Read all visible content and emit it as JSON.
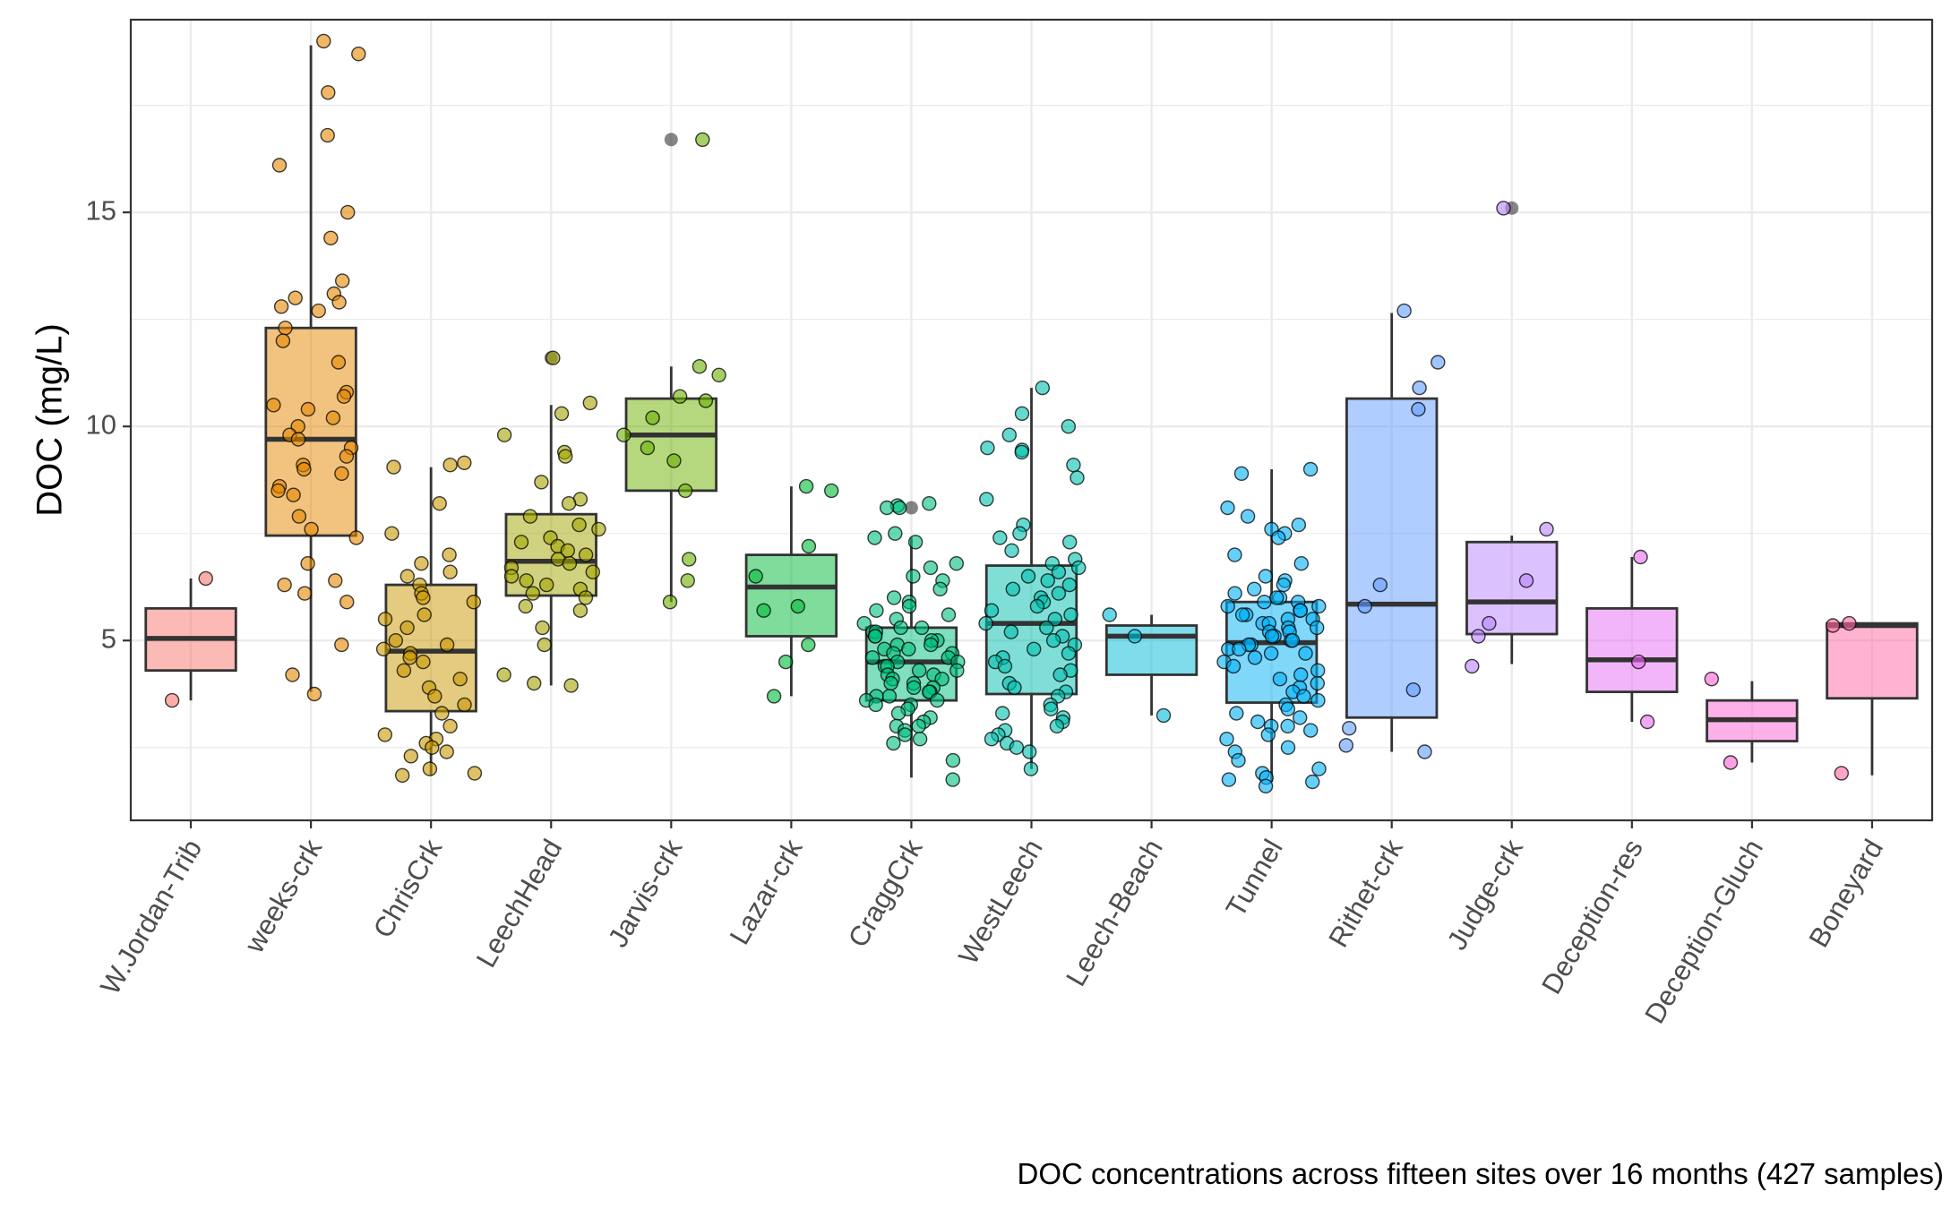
{
  "chart_data": {
    "type": "box",
    "title": "",
    "xlabel": "",
    "ylabel": "DOC (mg/L)",
    "caption": "DOC concentrations across fifteen sites over 16 months (427 samples)",
    "ylim": [
      0.8,
      19.5
    ],
    "yticks": [
      5,
      10,
      15
    ],
    "grid": true,
    "legend": "none",
    "point_alpha": 0.6,
    "categories": [
      "W.Jordan-Trib",
      "weeks-crk",
      "ChrisCrk",
      "LeechHead",
      "Jarvis-crk",
      "Lazar-crk",
      "CraggCrk",
      "WestLeech",
      "Leech-Beach",
      "Tunnel",
      "Rithet-crk",
      "Judge-crk",
      "Deception-res",
      "Deception-Gluch",
      "Boneyard"
    ],
    "colors": [
      "#F8766D",
      "#E58700",
      "#C99800",
      "#A3A500",
      "#6BB100",
      "#00BA38",
      "#00BF7D",
      "#00C0AF",
      "#00BCD8",
      "#00B0F6",
      "#619CFF",
      "#B983FF",
      "#E76BF3",
      "#FD61D1",
      "#FF67A4"
    ],
    "series": [
      {
        "name": "W.Jordan-Trib",
        "stats": {
          "min": 3.6,
          "q1": 4.3,
          "median": 5.05,
          "q3": 5.75,
          "max": 6.45
        },
        "outliers": [],
        "points": [
          6.45,
          3.6
        ]
      },
      {
        "name": "weeks-crk",
        "stats": {
          "min": 3.8,
          "q1": 7.45,
          "median": 9.7,
          "q3": 12.3,
          "max": 18.9
        },
        "outliers": [],
        "points": [
          19.0,
          18.7,
          17.8,
          16.8,
          16.1,
          15.0,
          14.4,
          13.4,
          13.1,
          13.0,
          12.9,
          12.8,
          12.7,
          12.3,
          12.0,
          11.5,
          10.8,
          10.7,
          10.5,
          10.4,
          10.2,
          10.0,
          9.8,
          9.7,
          9.5,
          9.3,
          9.1,
          9.0,
          8.9,
          8.6,
          8.5,
          8.4,
          7.9,
          7.6,
          7.4,
          6.8,
          6.4,
          6.3,
          6.1,
          5.9,
          4.9,
          4.2,
          3.75
        ]
      },
      {
        "name": "ChrisCrk",
        "stats": {
          "min": 1.85,
          "q1": 3.35,
          "median": 4.75,
          "q3": 6.3,
          "max": 9.05
        },
        "outliers": [],
        "points": [
          9.15,
          9.1,
          9.05,
          8.2,
          7.5,
          7.0,
          6.8,
          6.6,
          6.5,
          6.3,
          6.1,
          6.0,
          5.9,
          5.6,
          5.5,
          5.3,
          5.0,
          4.9,
          4.8,
          4.7,
          4.6,
          4.5,
          4.3,
          4.1,
          3.9,
          3.7,
          3.5,
          3.3,
          3.0,
          2.8,
          2.7,
          2.6,
          2.5,
          2.4,
          2.3,
          2.0,
          1.9,
          1.85
        ]
      },
      {
        "name": "LeechHead",
        "stats": {
          "min": 3.95,
          "q1": 6.05,
          "median": 6.85,
          "q3": 7.95,
          "max": 10.5
        },
        "outliers": [
          11.6
        ],
        "points": [
          11.6,
          10.55,
          10.3,
          9.8,
          9.4,
          9.3,
          8.7,
          8.3,
          8.2,
          7.9,
          7.7,
          7.6,
          7.4,
          7.3,
          7.2,
          7.1,
          7.0,
          6.9,
          6.8,
          6.7,
          6.6,
          6.5,
          6.4,
          6.3,
          6.2,
          6.1,
          6.0,
          5.8,
          5.7,
          5.3,
          4.9,
          4.2,
          4.0,
          3.95
        ]
      },
      {
        "name": "Jarvis-crk",
        "stats": {
          "min": 5.9,
          "q1": 8.5,
          "median": 9.8,
          "q3": 10.65,
          "max": 11.4
        },
        "outliers": [
          16.7
        ],
        "points": [
          16.7,
          11.4,
          11.2,
          10.7,
          10.6,
          10.2,
          9.8,
          9.5,
          9.2,
          8.5,
          6.9,
          6.4,
          5.9
        ]
      },
      {
        "name": "Lazar-crk",
        "stats": {
          "min": 3.7,
          "q1": 5.1,
          "median": 6.25,
          "q3": 7.0,
          "max": 8.6
        },
        "outliers": [],
        "points": [
          8.6,
          8.5,
          7.2,
          6.5,
          5.8,
          5.7,
          4.9,
          4.5,
          3.7
        ]
      },
      {
        "name": "CraggCrk",
        "stats": {
          "min": 1.8,
          "q1": 3.6,
          "median": 4.5,
          "q3": 5.3,
          "max": 7.4
        },
        "outliers": [
          8.1
        ],
        "points": [
          8.2,
          8.15,
          8.1,
          8.1,
          7.5,
          7.4,
          7.3,
          6.8,
          6.7,
          6.5,
          6.4,
          6.2,
          6.0,
          5.9,
          5.8,
          5.7,
          5.6,
          5.5,
          5.4,
          5.3,
          5.3,
          5.2,
          5.2,
          5.1,
          5.1,
          5.0,
          5.0,
          4.9,
          4.9,
          4.8,
          4.8,
          4.7,
          4.7,
          4.6,
          4.6,
          4.5,
          4.5,
          4.4,
          4.4,
          4.3,
          4.3,
          4.2,
          4.2,
          4.1,
          4.1,
          4.0,
          4.0,
          3.9,
          3.9,
          3.8,
          3.8,
          3.7,
          3.7,
          3.6,
          3.6,
          3.5,
          3.5,
          3.4,
          3.3,
          3.2,
          3.1,
          3.0,
          3.0,
          2.9,
          2.8,
          2.7,
          2.6,
          2.2,
          1.75
        ]
      },
      {
        "name": "WestLeech",
        "stats": {
          "min": 2.0,
          "q1": 3.75,
          "median": 5.4,
          "q3": 6.75,
          "max": 10.9
        },
        "outliers": [],
        "points": [
          10.9,
          10.3,
          10.0,
          9.8,
          9.5,
          9.45,
          9.4,
          9.1,
          8.8,
          8.3,
          7.7,
          7.5,
          7.4,
          7.3,
          7.1,
          6.9,
          6.8,
          6.7,
          6.6,
          6.5,
          6.4,
          6.3,
          6.2,
          6.1,
          6.0,
          5.9,
          5.8,
          5.7,
          5.6,
          5.5,
          5.4,
          5.3,
          5.2,
          5.1,
          5.0,
          4.9,
          4.8,
          4.7,
          4.6,
          4.5,
          4.4,
          4.3,
          4.2,
          4.0,
          3.9,
          3.8,
          3.7,
          3.5,
          3.4,
          3.3,
          3.2,
          3.1,
          3.0,
          2.9,
          2.8,
          2.7,
          2.6,
          2.5,
          2.4,
          2.0
        ]
      },
      {
        "name": "Leech-Beach",
        "stats": {
          "min": 3.25,
          "q1": 4.2,
          "median": 5.1,
          "q3": 5.35,
          "max": 5.6
        },
        "outliers": [],
        "points": [
          5.6,
          5.1,
          3.25
        ]
      },
      {
        "name": "Tunnel",
        "stats": {
          "min": 1.7,
          "q1": 3.55,
          "median": 4.95,
          "q3": 5.9,
          "max": 9.0
        },
        "outliers": [],
        "points": [
          9.0,
          8.9,
          8.1,
          7.9,
          7.7,
          7.6,
          7.5,
          7.4,
          7.0,
          6.8,
          6.5,
          6.4,
          6.3,
          6.2,
          6.1,
          6.0,
          6.0,
          5.9,
          5.9,
          5.8,
          5.8,
          5.7,
          5.7,
          5.6,
          5.6,
          5.5,
          5.5,
          5.4,
          5.4,
          5.3,
          5.3,
          5.2,
          5.2,
          5.1,
          5.1,
          5.0,
          5.0,
          4.9,
          4.9,
          4.8,
          4.8,
          4.7,
          4.7,
          4.6,
          4.5,
          4.4,
          4.3,
          4.2,
          4.1,
          4.0,
          3.9,
          3.8,
          3.7,
          3.6,
          3.5,
          3.4,
          3.3,
          3.2,
          3.1,
          3.0,
          3.0,
          2.9,
          2.8,
          2.7,
          2.5,
          2.4,
          2.2,
          2.0,
          1.9,
          1.8,
          1.75,
          1.7,
          1.6
        ]
      },
      {
        "name": "Rithet-crk",
        "stats": {
          "min": 2.4,
          "q1": 3.2,
          "median": 5.85,
          "q3": 10.65,
          "max": 12.65
        },
        "outliers": [],
        "points": [
          12.7,
          11.5,
          10.9,
          10.4,
          6.3,
          5.8,
          3.85,
          2.95,
          2.55,
          2.4
        ]
      },
      {
        "name": "Judge-crk",
        "stats": {
          "min": 4.45,
          "q1": 5.15,
          "median": 5.9,
          "q3": 7.3,
          "max": 7.45
        },
        "outliers": [
          15.1
        ],
        "points": [
          15.1,
          7.6,
          6.4,
          5.4,
          5.1,
          4.4
        ]
      },
      {
        "name": "Deception-res",
        "stats": {
          "min": 3.1,
          "q1": 3.8,
          "median": 4.55,
          "q3": 5.75,
          "max": 6.95
        },
        "outliers": [],
        "points": [
          6.95,
          4.5,
          3.1
        ]
      },
      {
        "name": "Deception-Gluch",
        "stats": {
          "min": 2.15,
          "q1": 2.65,
          "median": 3.15,
          "q3": 3.6,
          "max": 4.05
        },
        "outliers": [],
        "points": [
          4.1,
          2.15
        ]
      },
      {
        "name": "Boneyard",
        "stats": {
          "min": 1.85,
          "q1": 3.65,
          "median": 5.35,
          "q3": 5.4,
          "max": 5.4
        },
        "outliers": [],
        "points": [
          5.4,
          5.35,
          1.9
        ]
      }
    ]
  }
}
